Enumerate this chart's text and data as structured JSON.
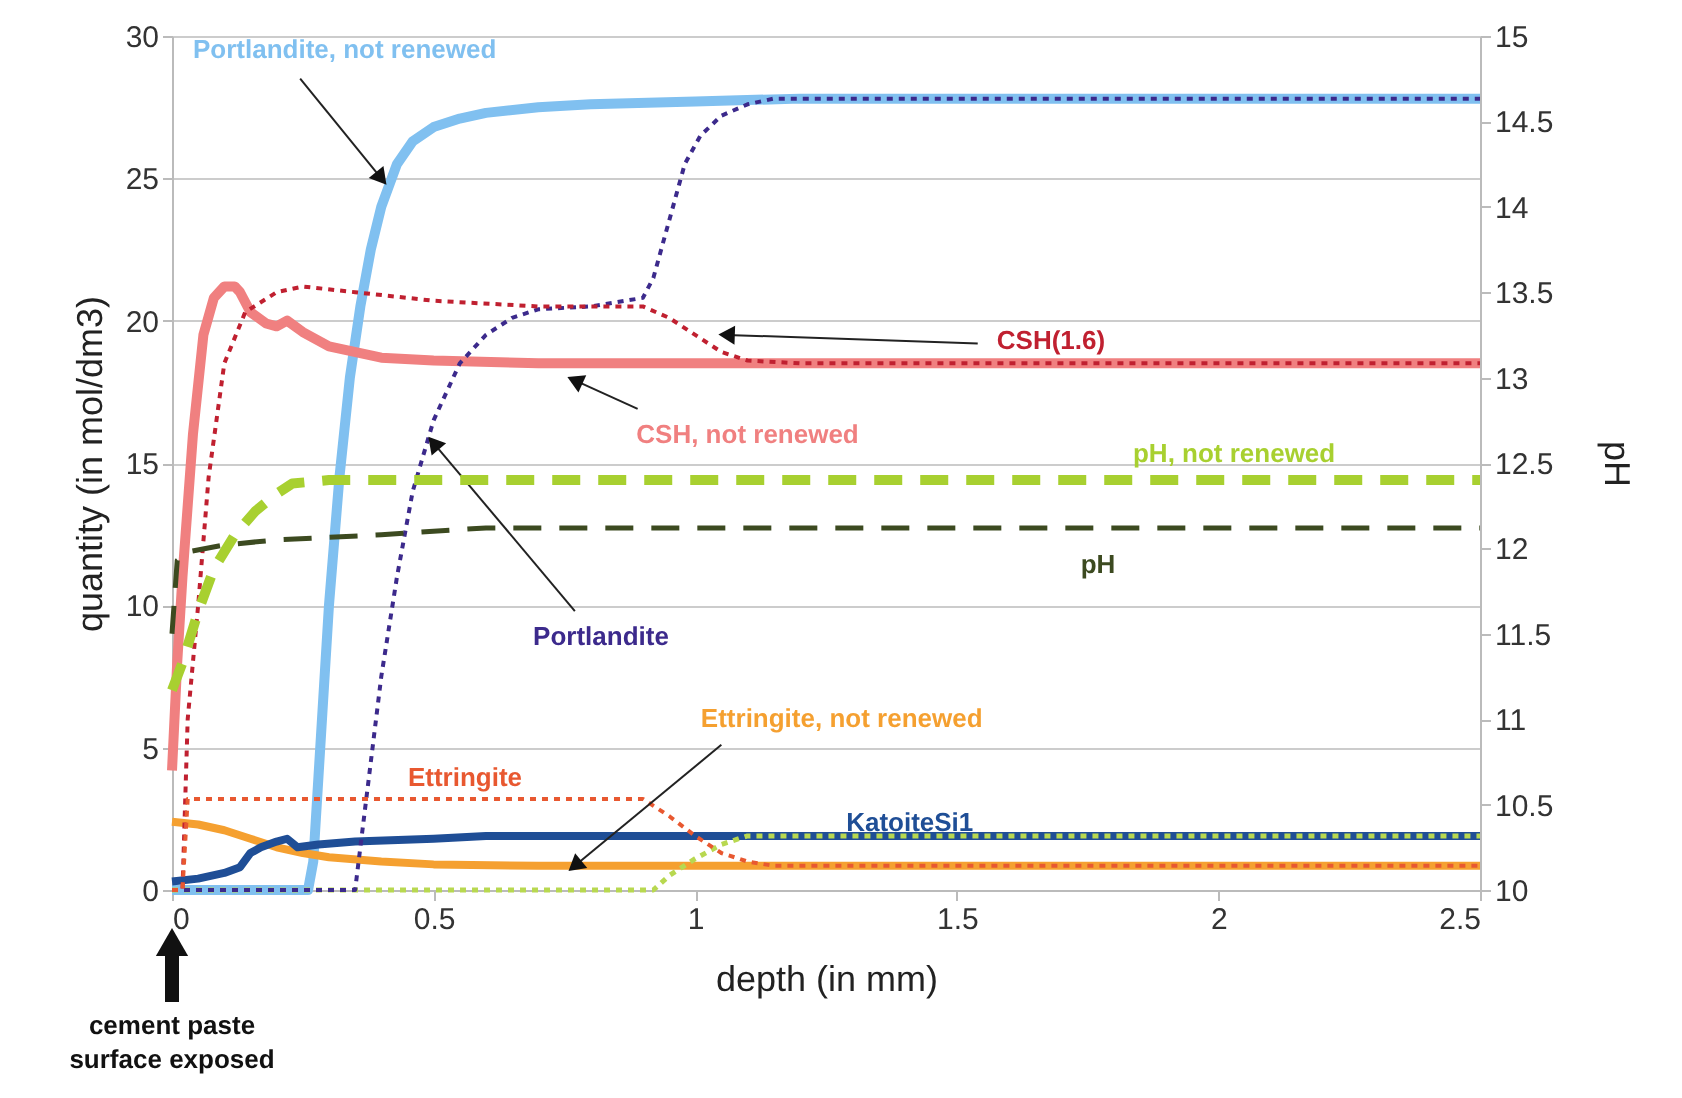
{
  "chart_data": {
    "type": "line",
    "xlabel": "depth (in mm)",
    "ylabel": "quantity (in mol/dm3)",
    "y2label": "pH",
    "xlim": [
      0,
      2.5
    ],
    "xticks": [
      0,
      0.5,
      1,
      1.5,
      2,
      2.5
    ],
    "ylim": [
      0,
      30
    ],
    "yticks": [
      0,
      5,
      10,
      15,
      20,
      25,
      30
    ],
    "y2lim": [
      10,
      15
    ],
    "y2ticks": [
      10,
      10.5,
      11,
      11.5,
      12,
      12.5,
      13,
      13.5,
      14,
      14.5,
      15
    ],
    "grid": "y",
    "series": [
      {
        "color": "#80c0f0",
        "line_style": "solid",
        "x": [
          0,
          0.26,
          0.27,
          0.28,
          0.3,
          0.32,
          0.34,
          0.36,
          0.38,
          0.4,
          0.43,
          0.46,
          0.5,
          0.55,
          0.6,
          0.7,
          0.8,
          1.0,
          1.2,
          1.4,
          2.5
        ],
        "values": [
          0,
          0,
          1,
          4,
          10,
          14.5,
          18,
          20.5,
          22.5,
          24,
          25.5,
          26.3,
          26.8,
          27.1,
          27.3,
          27.5,
          27.6,
          27.7,
          27.8,
          27.8,
          27.8
        ]
      },
      {
        "color": "#f08080",
        "line_style": "solid",
        "x": [
          0,
          0.01,
          0.02,
          0.04,
          0.06,
          0.08,
          0.1,
          0.12,
          0.13,
          0.15,
          0.18,
          0.2,
          0.22,
          0.25,
          0.3,
          0.4,
          0.5,
          0.7,
          2.5
        ],
        "values": [
          4.2,
          8,
          11,
          16,
          19.5,
          20.8,
          21.2,
          21.2,
          21,
          20.3,
          19.9,
          19.8,
          20,
          19.6,
          19.1,
          18.7,
          18.6,
          18.5,
          18.5
        ]
      },
      {
        "color": "#a8d030",
        "line_style": "dashed",
        "axis": "y2",
        "x": [
          0,
          0.02,
          0.05,
          0.08,
          0.12,
          0.16,
          0.2,
          0.23,
          0.3,
          2.5
        ],
        "values": [
          11.17,
          11.33,
          11.63,
          11.88,
          12.08,
          12.22,
          12.32,
          12.38,
          12.4,
          12.4
        ]
      },
      {
        "color": "#3c4a20",
        "line_style": "dashed",
        "axis": "y2",
        "x": [
          0,
          0.01,
          0.03,
          0.1,
          0.2,
          0.4,
          0.6,
          2.5
        ],
        "values": [
          11.5,
          11.93,
          11.98,
          12.02,
          12.05,
          12.08,
          12.12,
          12.12
        ]
      },
      {
        "color": "#f5a030",
        "line_style": "solid",
        "x": [
          0,
          0.05,
          0.1,
          0.15,
          0.2,
          0.25,
          0.3,
          0.4,
          0.5,
          0.7,
          1.0,
          2.5
        ],
        "values": [
          2.4,
          2.3,
          2.1,
          1.8,
          1.5,
          1.3,
          1.15,
          1.0,
          0.9,
          0.85,
          0.85,
          0.85
        ]
      },
      {
        "color": "#1f4e96",
        "line_style": "solid",
        "x": [
          0,
          0.05,
          0.1,
          0.13,
          0.15,
          0.17,
          0.2,
          0.22,
          0.24,
          0.28,
          0.35,
          0.5,
          0.6,
          2.5
        ],
        "values": [
          0.3,
          0.4,
          0.6,
          0.8,
          1.3,
          1.5,
          1.7,
          1.8,
          1.5,
          1.6,
          1.7,
          1.8,
          1.9,
          1.9
        ]
      },
      {
        "color": "#b8d850",
        "line_style": "dotted",
        "x": [
          0,
          0.92,
          0.95,
          1.0,
          1.05,
          1.1,
          2.5
        ],
        "values": [
          0,
          0,
          0.5,
          1.1,
          1.6,
          1.9,
          1.9
        ]
      },
      {
        "color": "#3c2a8c",
        "line_style": "dotted",
        "x": [
          0,
          0.35,
          0.37,
          0.4,
          0.43,
          0.46,
          0.5,
          0.55,
          0.6,
          0.65,
          0.7,
          0.8,
          0.9,
          0.92,
          0.95,
          0.98,
          1.01,
          1.05,
          1.1,
          1.15,
          1.23,
          2.5
        ],
        "values": [
          0,
          0,
          3,
          7.5,
          11,
          14,
          16.5,
          18.5,
          19.5,
          20.1,
          20.4,
          20.5,
          20.8,
          21.5,
          23.5,
          25.5,
          26.5,
          27.2,
          27.6,
          27.8,
          27.8,
          27.8
        ]
      },
      {
        "color": "#c02030",
        "line_style": "dotted",
        "x": [
          0,
          0.02,
          0.03,
          0.05,
          0.07,
          0.1,
          0.14,
          0.2,
          0.25,
          0.35,
          0.5,
          0.7,
          0.9,
          0.95,
          1.0,
          1.05,
          1.1,
          1.2,
          2.5
        ],
        "values": [
          0,
          0,
          6,
          10,
          14.5,
          18.5,
          20.3,
          21,
          21.2,
          21,
          20.7,
          20.5,
          20.5,
          20.1,
          19.5,
          18.9,
          18.6,
          18.5,
          18.5
        ]
      },
      {
        "color": "#e85830",
        "line_style": "dotted",
        "x": [
          0,
          0.02,
          0.03,
          0.9,
          0.95,
          1.0,
          1.05,
          1.1,
          1.15,
          2.5
        ],
        "values": [
          0,
          0,
          3.2,
          3.2,
          2.6,
          1.9,
          1.3,
          1.0,
          0.85,
          0.85
        ]
      }
    ],
    "annotations": [
      {
        "text": "Portlandite, not renewed",
        "x": 0.4,
        "y": 25
      },
      {
        "text": "CSH(1.6)",
        "x": 1.06,
        "y": 19.5
      },
      {
        "text": "CSH, not renewed",
        "x": 0.77,
        "y": 17.9
      },
      {
        "text": "Portlandite",
        "x": 0.5,
        "y": 15.7
      },
      {
        "text": "Ettringite, not renewed",
        "x": 0.77,
        "y": 0.85
      },
      {
        "text": "Ettringite",
        "x": 0.5,
        "y": 3.2
      },
      {
        "text": "KatoiteSi1",
        "x": 1.4,
        "y": 1.9
      },
      {
        "text": "pH, not renewed",
        "x": 2.0,
        "y": 14.4
      },
      {
        "text": "pH",
        "x": 1.75,
        "y": 12.7
      },
      "cement paste\nsurface exposed"
    ]
  }
}
